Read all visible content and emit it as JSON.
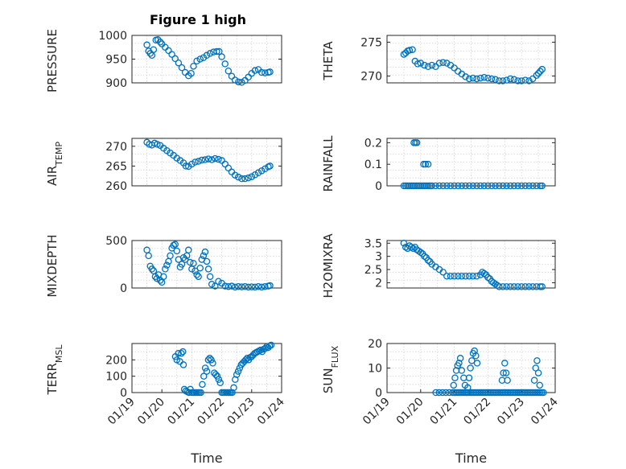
{
  "figure_title": "Figure 1 high",
  "marker_color": "#0072bd",
  "chart_data": [
    {
      "type": "scatter",
      "name": "pressure",
      "ylabel": "PRESSURE",
      "ylim": [
        900,
        1000
      ],
      "yticks": [
        900,
        950,
        1000
      ],
      "xlim": [
        0,
        4.5
      ],
      "xlabel": "",
      "xticklabels": [],
      "x": [
        0.45,
        0.5,
        0.55,
        0.6,
        0.65,
        0.72,
        0.78,
        0.85,
        0.9,
        1.0,
        1.1,
        1.2,
        1.3,
        1.4,
        1.5,
        1.6,
        1.7,
        1.78,
        1.85,
        1.95,
        2.05,
        2.15,
        2.25,
        2.35,
        2.45,
        2.55,
        2.62,
        2.7,
        2.8,
        2.9,
        3.0,
        3.1,
        3.2,
        3.3,
        3.4,
        3.5,
        3.6,
        3.7,
        3.8,
        3.9,
        4.0,
        4.1,
        4.15
      ],
      "y": [
        980,
        967,
        962,
        958,
        970,
        990,
        991,
        986,
        982,
        975,
        968,
        960,
        951,
        942,
        932,
        922,
        915,
        920,
        935,
        946,
        950,
        953,
        958,
        962,
        965,
        966,
        966,
        955,
        940,
        925,
        914,
        906,
        902,
        901,
        905,
        912,
        920,
        926,
        928,
        922,
        921,
        922,
        923
      ]
    },
    {
      "type": "scatter",
      "name": "theta",
      "ylabel": "THETA",
      "ylim": [
        269,
        276
      ],
      "yticks": [
        270,
        275
      ],
      "xlim": [
        0,
        4.5
      ],
      "xlabel": "",
      "xticklabels": [],
      "x": [
        0.45,
        0.5,
        0.55,
        0.6,
        0.68,
        0.75,
        0.82,
        0.9,
        1.0,
        1.1,
        1.2,
        1.3,
        1.4,
        1.5,
        1.6,
        1.7,
        1.8,
        1.9,
        2.0,
        2.1,
        2.2,
        2.3,
        2.4,
        2.5,
        2.6,
        2.7,
        2.8,
        2.9,
        3.0,
        3.1,
        3.2,
        3.3,
        3.4,
        3.5,
        3.6,
        3.7,
        3.8,
        3.9,
        4.0,
        4.05,
        4.1,
        4.15
      ],
      "y": [
        273.2,
        273.4,
        273.7,
        273.8,
        273.9,
        272.2,
        271.8,
        271.9,
        271.6,
        271.4,
        271.6,
        271.4,
        271.9,
        272.0,
        271.9,
        271.6,
        271.2,
        270.7,
        270.3,
        269.9,
        269.6,
        269.7,
        269.6,
        269.7,
        269.8,
        269.7,
        269.6,
        269.5,
        269.3,
        269.3,
        269.4,
        269.6,
        269.5,
        269.3,
        269.3,
        269.4,
        269.3,
        269.6,
        270.1,
        270.4,
        270.7,
        271.0
      ]
    },
    {
      "type": "scatter",
      "name": "air_temp",
      "ylabel": "AIR_TEMP",
      "ylim": [
        260,
        272
      ],
      "yticks": [
        260,
        265,
        270
      ],
      "xlim": [
        0,
        4.5
      ],
      "xlabel": "",
      "xticklabels": [],
      "x": [
        0.45,
        0.52,
        0.6,
        0.68,
        0.76,
        0.85,
        0.95,
        1.05,
        1.15,
        1.25,
        1.35,
        1.45,
        1.55,
        1.62,
        1.7,
        1.8,
        1.9,
        2.0,
        2.1,
        2.2,
        2.3,
        2.4,
        2.5,
        2.6,
        2.7,
        2.8,
        2.9,
        3.0,
        3.1,
        3.2,
        3.3,
        3.4,
        3.5,
        3.6,
        3.7,
        3.8,
        3.9,
        4.0,
        4.1,
        4.15
      ],
      "y": [
        271.0,
        270.5,
        270.3,
        270.8,
        270.5,
        270.2,
        269.5,
        268.9,
        268.3,
        267.7,
        267.0,
        266.4,
        265.8,
        265.0,
        264.9,
        265.5,
        266.0,
        266.2,
        266.5,
        266.6,
        266.8,
        266.6,
        266.9,
        266.7,
        266.4,
        265.5,
        264.5,
        263.5,
        262.7,
        262.2,
        261.8,
        261.8,
        262.0,
        262.3,
        262.8,
        263.3,
        263.8,
        264.3,
        264.8,
        265.0
      ]
    },
    {
      "type": "scatter",
      "name": "rainfall",
      "ylabel": "RAINFALL",
      "ylim": [
        0,
        0.22
      ],
      "yticks": [
        0,
        0.1,
        0.2
      ],
      "xlim": [
        0,
        4.5
      ],
      "xlabel": "",
      "xticklabels": [],
      "x": [
        0.45,
        0.5,
        0.55,
        0.6,
        0.65,
        0.7,
        0.75,
        0.8,
        0.85,
        0.9,
        0.95,
        1.0,
        1.05,
        1.1,
        1.15,
        1.2,
        1.3,
        1.4,
        1.5,
        1.6,
        1.7,
        1.8,
        1.9,
        2.0,
        2.1,
        2.2,
        2.3,
        2.4,
        2.5,
        2.6,
        2.7,
        2.8,
        2.9,
        3.0,
        3.1,
        3.2,
        3.3,
        3.4,
        3.5,
        3.6,
        3.7,
        3.8,
        3.9,
        4.0,
        4.1,
        4.15,
        0.72,
        0.76,
        0.8,
        0.98,
        1.03,
        1.1
      ],
      "y": [
        0,
        0,
        0,
        0,
        0,
        0,
        0,
        0,
        0,
        0,
        0,
        0,
        0,
        0,
        0,
        0,
        0,
        0,
        0,
        0,
        0,
        0,
        0,
        0,
        0,
        0,
        0,
        0,
        0,
        0,
        0,
        0,
        0,
        0,
        0,
        0,
        0,
        0,
        0,
        0,
        0,
        0,
        0,
        0,
        0,
        0,
        0.2,
        0.2,
        0.2,
        0.1,
        0.1,
        0.1
      ]
    },
    {
      "type": "scatter",
      "name": "mixdepth",
      "ylabel": "MIXDEPTH",
      "ylim": [
        0,
        500
      ],
      "yticks": [
        0,
        500
      ],
      "xlim": [
        0,
        4.5
      ],
      "xlabel": "",
      "xticklabels": [],
      "x": [
        0.45,
        0.5,
        0.55,
        0.6,
        0.65,
        0.7,
        0.75,
        0.8,
        0.85,
        0.9,
        0.95,
        1.0,
        1.05,
        1.1,
        1.15,
        1.2,
        1.25,
        1.3,
        1.35,
        1.4,
        1.45,
        1.5,
        1.55,
        1.6,
        1.65,
        1.7,
        1.75,
        1.8,
        1.85,
        1.9,
        1.95,
        2.0,
        2.05,
        2.1,
        2.15,
        2.2,
        2.25,
        2.3,
        2.35,
        2.4,
        2.5,
        2.6,
        2.7,
        2.8,
        2.9,
        3.0,
        3.1,
        3.2,
        3.3,
        3.4,
        3.5,
        3.6,
        3.7,
        3.8,
        3.9,
        4.0,
        4.1,
        4.15
      ],
      "y": [
        400,
        340,
        230,
        200,
        180,
        120,
        100,
        140,
        80,
        60,
        120,
        200,
        240,
        280,
        340,
        420,
        450,
        460,
        390,
        300,
        220,
        250,
        320,
        300,
        340,
        400,
        270,
        200,
        260,
        180,
        140,
        120,
        210,
        300,
        340,
        380,
        280,
        200,
        120,
        40,
        20,
        70,
        50,
        20,
        15,
        20,
        10,
        15,
        12,
        15,
        10,
        12,
        10,
        15,
        10,
        15,
        20,
        25
      ]
    },
    {
      "type": "scatter",
      "name": "h2o_mixra",
      "ylabel": "H2OMIXRA",
      "ylim": [
        1.8,
        3.6
      ],
      "yticks": [
        2,
        2.5,
        3,
        3.5
      ],
      "xlim": [
        0,
        4.5
      ],
      "xlabel": "",
      "xticklabels": [],
      "x": [
        0.45,
        0.5,
        0.55,
        0.6,
        0.65,
        0.7,
        0.75,
        0.8,
        0.85,
        0.9,
        0.95,
        1.0,
        1.05,
        1.1,
        1.15,
        1.2,
        1.3,
        1.4,
        1.5,
        1.6,
        1.7,
        1.8,
        1.9,
        2.0,
        2.1,
        2.2,
        2.3,
        2.4,
        2.5,
        2.55,
        2.6,
        2.65,
        2.7,
        2.75,
        2.8,
        2.85,
        2.9,
        2.95,
        3.0,
        3.1,
        3.2,
        3.3,
        3.4,
        3.5,
        3.6,
        3.7,
        3.8,
        3.9,
        4.0,
        4.1,
        4.15
      ],
      "y": [
        3.5,
        3.35,
        3.3,
        3.4,
        3.35,
        3.3,
        3.35,
        3.25,
        3.2,
        3.15,
        3.1,
        3.0,
        2.95,
        2.85,
        2.8,
        2.7,
        2.6,
        2.5,
        2.4,
        2.25,
        2.25,
        2.25,
        2.25,
        2.25,
        2.25,
        2.25,
        2.25,
        2.25,
        2.3,
        2.4,
        2.35,
        2.3,
        2.2,
        2.15,
        2.05,
        2.0,
        1.95,
        1.9,
        1.85,
        1.85,
        1.85,
        1.85,
        1.85,
        1.85,
        1.85,
        1.85,
        1.85,
        1.85,
        1.85,
        1.85,
        1.85
      ]
    },
    {
      "type": "scatter",
      "name": "terr_msl",
      "ylabel": "TERR_MSL",
      "ylim": [
        0,
        300
      ],
      "yticks": [
        0,
        100,
        200
      ],
      "xlim": [
        0,
        5
      ],
      "xlabel": "Time",
      "xticks": [
        0,
        1,
        2,
        3,
        4,
        5
      ],
      "xticklabels": [
        "01/19",
        "01/20",
        "01/21",
        "01/22",
        "01/23",
        "01/24"
      ],
      "x": [
        1.45,
        1.5,
        1.55,
        1.6,
        1.65,
        1.7,
        1.72,
        1.75,
        1.8,
        1.85,
        1.9,
        1.95,
        2.0,
        2.05,
        2.1,
        2.15,
        2.2,
        2.25,
        2.3,
        2.35,
        2.4,
        2.45,
        2.5,
        2.55,
        2.6,
        2.65,
        2.7,
        2.75,
        2.8,
        2.85,
        2.9,
        2.95,
        3.0,
        3.05,
        3.1,
        3.15,
        3.2,
        3.25,
        3.3,
        3.35,
        3.4,
        3.45,
        3.5,
        3.55,
        3.6,
        3.65,
        3.7,
        3.75,
        3.8,
        3.85,
        3.9,
        3.95,
        4.0,
        4.05,
        4.1,
        4.15,
        4.2,
        4.25,
        4.3,
        4.35,
        4.4,
        4.45,
        4.5,
        4.55,
        4.6,
        4.65
      ],
      "y": [
        220,
        200,
        240,
        190,
        240,
        250,
        170,
        20,
        10,
        5,
        0,
        20,
        0,
        0,
        0,
        0,
        0,
        0,
        0,
        50,
        100,
        150,
        130,
        200,
        210,
        200,
        180,
        120,
        110,
        100,
        80,
        60,
        0,
        0,
        0,
        0,
        0,
        0,
        0,
        0,
        30,
        80,
        110,
        130,
        150,
        170,
        180,
        190,
        200,
        210,
        200,
        215,
        220,
        230,
        240,
        245,
        250,
        255,
        260,
        250,
        265,
        270,
        280,
        275,
        285,
        290
      ]
    },
    {
      "type": "scatter",
      "name": "sun_flux",
      "ylabel": "SUN_FLUX",
      "ylim": [
        0,
        20
      ],
      "yticks": [
        0,
        10,
        20
      ],
      "xlim": [
        0,
        5
      ],
      "xlabel": "Time",
      "xticks": [
        0,
        1,
        2,
        3,
        4,
        5
      ],
      "xticklabels": [
        "01/19",
        "01/20",
        "01/21",
        "01/22",
        "01/23",
        "01/24"
      ],
      "x": [
        1.45,
        1.55,
        1.65,
        1.75,
        1.85,
        1.95,
        2.0,
        2.05,
        2.1,
        2.15,
        2.2,
        2.25,
        2.3,
        2.35,
        2.4,
        2.45,
        2.5,
        2.55,
        2.6,
        2.65,
        2.7,
        2.75,
        2.8,
        2.85,
        2.9,
        2.95,
        3.0,
        3.05,
        3.1,
        3.15,
        3.2,
        3.25,
        3.3,
        3.35,
        3.4,
        3.45,
        3.5,
        3.55,
        3.6,
        3.65,
        3.7,
        3.75,
        3.8,
        3.85,
        3.9,
        3.95,
        4.0,
        4.05,
        4.1,
        4.15,
        4.2,
        4.25,
        4.3,
        4.35,
        4.4,
        4.45,
        4.5,
        4.55,
        4.6,
        4.65,
        1.98,
        2.02,
        2.06,
        2.1,
        2.14,
        2.18,
        2.22,
        2.28,
        2.32,
        2.36,
        2.4,
        2.44,
        2.48,
        2.52,
        2.56,
        2.6,
        2.64,
        2.68,
        3.42,
        3.46,
        3.5,
        3.54,
        3.58,
        4.38,
        4.42,
        4.46,
        4.5,
        4.54
      ],
      "y": [
        0,
        0,
        0,
        0,
        0,
        0,
        0,
        0,
        0,
        0,
        0,
        0,
        0,
        0,
        0,
        0,
        0,
        0,
        0,
        0,
        0,
        0,
        0,
        0,
        0,
        0,
        0,
        0,
        0,
        0,
        0,
        0,
        0,
        0,
        0,
        0,
        0,
        0,
        0,
        0,
        0,
        0,
        0,
        0,
        0,
        0,
        0,
        0,
        0,
        0,
        0,
        0,
        0,
        0,
        0,
        0,
        0,
        0,
        0,
        0,
        3,
        6,
        9,
        11,
        12,
        14,
        9,
        6,
        3,
        0,
        2,
        6,
        10,
        13,
        16,
        17,
        15,
        12,
        5,
        8,
        12,
        8,
        5,
        5,
        10,
        13,
        8,
        3
      ]
    }
  ]
}
